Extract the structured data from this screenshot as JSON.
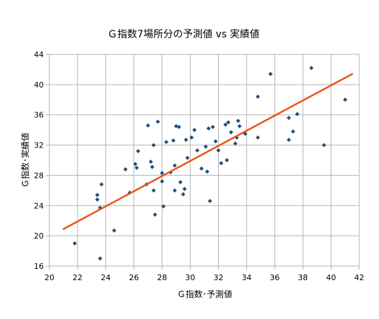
{
  "chart_data": {
    "type": "scatter",
    "title": "Ｇ指数7場所分の予測値 vs 実績値",
    "xlabel": "Ｇ指数･予測値",
    "ylabel": "Ｇ指数･実績値",
    "xlim": [
      20,
      42
    ],
    "ylim": [
      16,
      44
    ],
    "xticks": [
      "20",
      "22",
      "24",
      "26",
      "28",
      "30",
      "32",
      "34",
      "36",
      "38",
      "40",
      "42"
    ],
    "yticks": [
      "16",
      "20",
      "24",
      "28",
      "32",
      "36",
      "40",
      "44"
    ],
    "grid": true,
    "colors": {
      "points": "#1f4e79",
      "trendline": "#e8551c",
      "grid": "#b3b3b3",
      "axis": "#b3b3b3"
    },
    "trendline": {
      "x": [
        21.0,
        41.5
      ],
      "y": [
        20.9,
        41.4
      ]
    },
    "points": [
      {
        "x": 21.8,
        "y": 19.0
      },
      {
        "x": 23.6,
        "y": 17.0
      },
      {
        "x": 23.6,
        "y": 23.7
      },
      {
        "x": 23.4,
        "y": 24.8
      },
      {
        "x": 23.4,
        "y": 25.4
      },
      {
        "x": 23.7,
        "y": 26.8
      },
      {
        "x": 24.6,
        "y": 20.7
      },
      {
        "x": 25.4,
        "y": 28.8
      },
      {
        "x": 25.7,
        "y": 25.7
      },
      {
        "x": 26.1,
        "y": 29.5
      },
      {
        "x": 26.2,
        "y": 29.0
      },
      {
        "x": 26.3,
        "y": 31.2
      },
      {
        "x": 26.9,
        "y": 26.8
      },
      {
        "x": 27.0,
        "y": 34.6
      },
      {
        "x": 27.2,
        "y": 29.8
      },
      {
        "x": 27.3,
        "y": 29.1
      },
      {
        "x": 27.4,
        "y": 26.0
      },
      {
        "x": 27.4,
        "y": 32.0
      },
      {
        "x": 27.5,
        "y": 22.8
      },
      {
        "x": 27.7,
        "y": 35.1
      },
      {
        "x": 28.0,
        "y": 28.3
      },
      {
        "x": 28.0,
        "y": 27.2
      },
      {
        "x": 28.1,
        "y": 23.9
      },
      {
        "x": 28.3,
        "y": 32.4
      },
      {
        "x": 28.6,
        "y": 28.4
      },
      {
        "x": 28.8,
        "y": 32.6
      },
      {
        "x": 28.9,
        "y": 26.0
      },
      {
        "x": 28.9,
        "y": 29.3
      },
      {
        "x": 29.0,
        "y": 34.5
      },
      {
        "x": 29.2,
        "y": 34.4
      },
      {
        "x": 29.3,
        "y": 27.1
      },
      {
        "x": 29.5,
        "y": 25.5
      },
      {
        "x": 29.6,
        "y": 26.2
      },
      {
        "x": 29.7,
        "y": 32.7
      },
      {
        "x": 29.8,
        "y": 30.3
      },
      {
        "x": 30.1,
        "y": 33.0
      },
      {
        "x": 30.3,
        "y": 34.0
      },
      {
        "x": 30.5,
        "y": 31.3
      },
      {
        "x": 30.8,
        "y": 28.9
      },
      {
        "x": 31.1,
        "y": 31.8
      },
      {
        "x": 31.2,
        "y": 28.5
      },
      {
        "x": 31.3,
        "y": 34.2
      },
      {
        "x": 31.4,
        "y": 24.6
      },
      {
        "x": 31.6,
        "y": 34.4
      },
      {
        "x": 31.8,
        "y": 32.5
      },
      {
        "x": 32.0,
        "y": 31.3
      },
      {
        "x": 32.2,
        "y": 29.6
      },
      {
        "x": 32.5,
        "y": 34.7
      },
      {
        "x": 32.6,
        "y": 30.0
      },
      {
        "x": 32.7,
        "y": 35.0
      },
      {
        "x": 32.9,
        "y": 33.7
      },
      {
        "x": 33.2,
        "y": 32.2
      },
      {
        "x": 33.3,
        "y": 33.0
      },
      {
        "x": 33.4,
        "y": 35.2
      },
      {
        "x": 33.5,
        "y": 34.5
      },
      {
        "x": 33.9,
        "y": 33.5
      },
      {
        "x": 34.8,
        "y": 33.0
      },
      {
        "x": 34.8,
        "y": 38.4
      },
      {
        "x": 35.7,
        "y": 41.4
      },
      {
        "x": 37.0,
        "y": 35.6
      },
      {
        "x": 37.0,
        "y": 32.7
      },
      {
        "x": 37.3,
        "y": 33.8
      },
      {
        "x": 37.6,
        "y": 36.1
      },
      {
        "x": 38.6,
        "y": 42.2
      },
      {
        "x": 39.5,
        "y": 32.0
      },
      {
        "x": 41.0,
        "y": 38.0
      }
    ]
  }
}
